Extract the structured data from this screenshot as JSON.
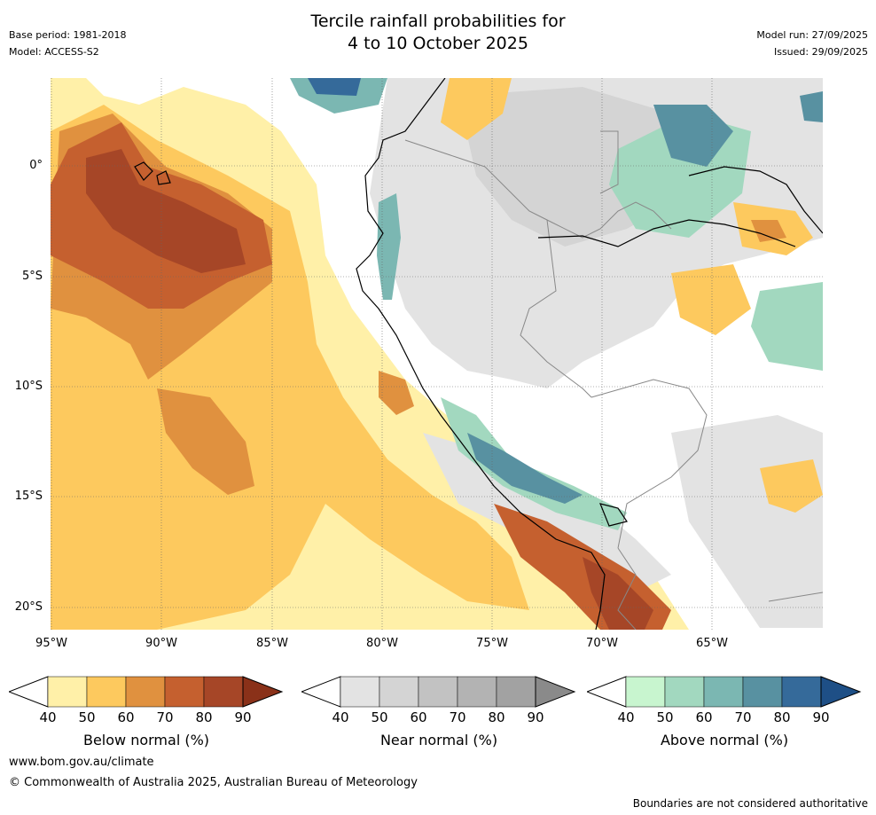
{
  "header": {
    "title_line1": "Tercile rainfall probabilities for",
    "title_line2": "4 to 10 October 2025",
    "base_period": "Base period: 1981-2018",
    "model": "Model: ACCESS-S2",
    "model_run": "Model run: 27/09/2025",
    "issued": "Issued: 29/09/2025"
  },
  "map": {
    "lat_labels": [
      "0°",
      "5°S",
      "10°S",
      "15°S",
      "20°S"
    ],
    "lon_labels": [
      "95°W",
      "90°W",
      "85°W",
      "80°W",
      "75°W",
      "70°W",
      "65°W"
    ],
    "ocean_color": "#ffffff",
    "coastline_color": "#000000",
    "border_color": "#888888"
  },
  "legends": [
    {
      "label": "Below normal (%)",
      "ticks": [
        "40",
        "50",
        "60",
        "70",
        "80",
        "90"
      ],
      "colors": [
        "#fff0a8",
        "#fdc95e",
        "#e0913f",
        "#c5602f",
        "#a64627",
        "#8a3119"
      ]
    },
    {
      "label": "Near normal (%)",
      "ticks": [
        "40",
        "50",
        "60",
        "70",
        "80",
        "90"
      ],
      "colors": [
        "#e3e3e3",
        "#d4d4d4",
        "#c2c2c2",
        "#b3b3b3",
        "#a2a2a2",
        "#8a8a8a"
      ]
    },
    {
      "label": "Above normal (%)",
      "ticks": [
        "40",
        "50",
        "60",
        "70",
        "80",
        "90"
      ],
      "colors": [
        "#c8f5cf",
        "#a2d8bf",
        "#7bb7b2",
        "#5891a1",
        "#356a9a",
        "#1e4f86"
      ]
    }
  ],
  "footer": {
    "website": "www.bom.gov.au/climate",
    "copyright": "© Commonwealth of Australia 2025, Australian Bureau of Meteorology",
    "disclaimer": "Boundaries are not considered authoritative"
  }
}
